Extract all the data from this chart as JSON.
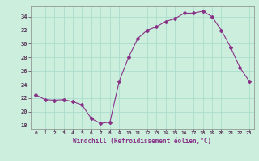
{
  "x": [
    0,
    1,
    2,
    3,
    4,
    5,
    6,
    7,
    8,
    9,
    10,
    11,
    12,
    13,
    14,
    15,
    16,
    17,
    18,
    19,
    20,
    21,
    22,
    23
  ],
  "y": [
    22.5,
    21.8,
    21.7,
    21.8,
    21.5,
    21.0,
    19.0,
    18.3,
    18.5,
    24.5,
    28.0,
    30.8,
    32.0,
    32.5,
    33.3,
    33.7,
    34.5,
    34.5,
    34.8,
    34.0,
    32.0,
    29.5,
    26.5,
    24.5
  ],
  "line_color": "#883388",
  "marker": "D",
  "marker_size": 2,
  "bg_color": "#cceedd",
  "grid_color": "#aaddcc",
  "xlabel": "Windchill (Refroidissement éolien,°C)",
  "ylim": [
    17.5,
    35.5
  ],
  "xlim": [
    -0.5,
    23.5
  ],
  "yticks": [
    18,
    20,
    22,
    24,
    26,
    28,
    30,
    32,
    34
  ],
  "xticks": [
    0,
    1,
    2,
    3,
    4,
    5,
    6,
    7,
    8,
    9,
    10,
    11,
    12,
    13,
    14,
    15,
    16,
    17,
    18,
    19,
    20,
    21,
    22,
    23
  ]
}
